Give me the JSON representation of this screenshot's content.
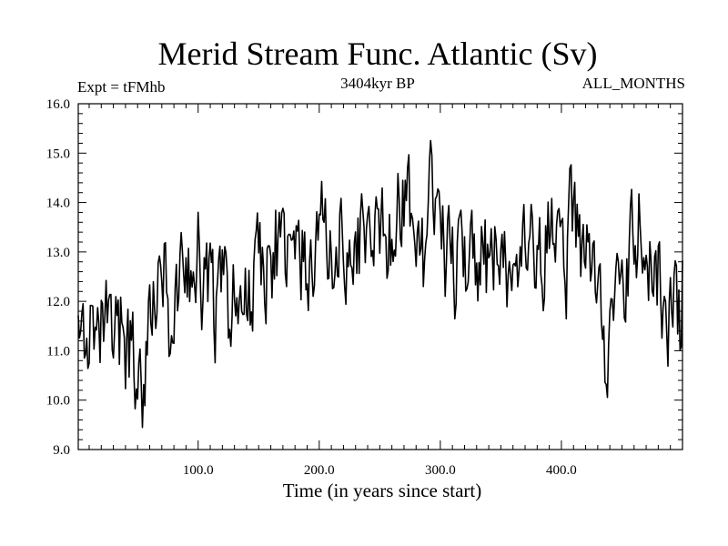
{
  "chart_data": {
    "type": "line",
    "title": "Merid Stream Func. Atlantic (Sv)",
    "subtitle_left": "Expt = tFMhb",
    "subtitle_center": "3404kyr BP",
    "subtitle_right": "ALL_MONTHS",
    "xlabel": "Time (in years since start)",
    "ylabel": "",
    "xlim": [
      1,
      500
    ],
    "ylim": [
      9.0,
      16.0
    ],
    "xticks": [
      100,
      200,
      300,
      400
    ],
    "xtick_labels": [
      "100.0",
      "200.0",
      "300.0",
      "400.0"
    ],
    "yticks": [
      9,
      10,
      11,
      12,
      13,
      14,
      15,
      16
    ],
    "ytick_labels": [
      "9.0",
      "10.0",
      "11.0",
      "12.0",
      "13.0",
      "14.0",
      "15.0",
      "16.0"
    ],
    "grid": false,
    "series": [
      {
        "name": "Merid Stream Func. Atlantic",
        "anchors_x": [
          1,
          4,
          8,
          12,
          16,
          20,
          25,
          30,
          34,
          38,
          42,
          46,
          50,
          55,
          58,
          62,
          66,
          70,
          74,
          78,
          82,
          86,
          90,
          94,
          98,
          100,
          104,
          108,
          112,
          116,
          120,
          124,
          128,
          132,
          136,
          140,
          145,
          150,
          155,
          160,
          165,
          170,
          175,
          180,
          185,
          190,
          195,
          200,
          205,
          210,
          215,
          220,
          225,
          230,
          235,
          240,
          245,
          250,
          255,
          260,
          265,
          270,
          273,
          276,
          280,
          284,
          288,
          292,
          296,
          300,
          304,
          308,
          312,
          316,
          320,
          324,
          328,
          332,
          336,
          340,
          344,
          348,
          352,
          356,
          360,
          364,
          368,
          372,
          376,
          380,
          384,
          388,
          392,
          396,
          400,
          404,
          408,
          412,
          416,
          420,
          424,
          428,
          432,
          434,
          436,
          438,
          442,
          446,
          450,
          454,
          458,
          462,
          466,
          470,
          474,
          478,
          482,
          486,
          490,
          494,
          498,
          500
        ],
        "anchors_y": [
          12.2,
          12.5,
          11.0,
          11.2,
          10.5,
          11.2,
          11.6,
          11.0,
          11.5,
          11.3,
          11.0,
          11.0,
          10.4,
          10.2,
          11.5,
          11.6,
          11.6,
          12.6,
          12.6,
          11.0,
          12.0,
          12.5,
          12.8,
          12.6,
          12.2,
          12.9,
          12.3,
          12.5,
          12.4,
          11.5,
          12.5,
          12.1,
          11.8,
          12.0,
          11.5,
          12.1,
          12.4,
          13.0,
          12.6,
          12.8,
          13.2,
          13.0,
          12.6,
          12.8,
          12.9,
          12.6,
          12.6,
          13.3,
          13.7,
          12.7,
          13.2,
          13.3,
          12.8,
          12.9,
          13.4,
          13.3,
          13.8,
          13.3,
          13.3,
          13.5,
          14.0,
          14.2,
          14.5,
          13.6,
          13.2,
          12.8,
          12.8,
          14.0,
          14.4,
          14.0,
          13.1,
          12.8,
          12.6,
          12.9,
          13.1,
          13.0,
          13.2,
          12.9,
          12.6,
          12.9,
          13.0,
          12.9,
          12.5,
          12.8,
          13.1,
          12.2,
          12.6,
          12.9,
          13.0,
          12.9,
          12.6,
          13.2,
          13.1,
          13.6,
          13.1,
          12.7,
          13.8,
          13.4,
          12.9,
          12.8,
          12.6,
          12.8,
          12.1,
          12.1,
          11.2,
          11.3,
          11.6,
          11.9,
          12.0,
          12.3,
          13.0,
          13.4,
          13.7,
          12.5,
          12.4,
          12.8,
          12.4,
          11.6,
          11.5,
          12.1,
          11.8,
          12.3
        ],
        "color": "#000000"
      }
    ]
  }
}
